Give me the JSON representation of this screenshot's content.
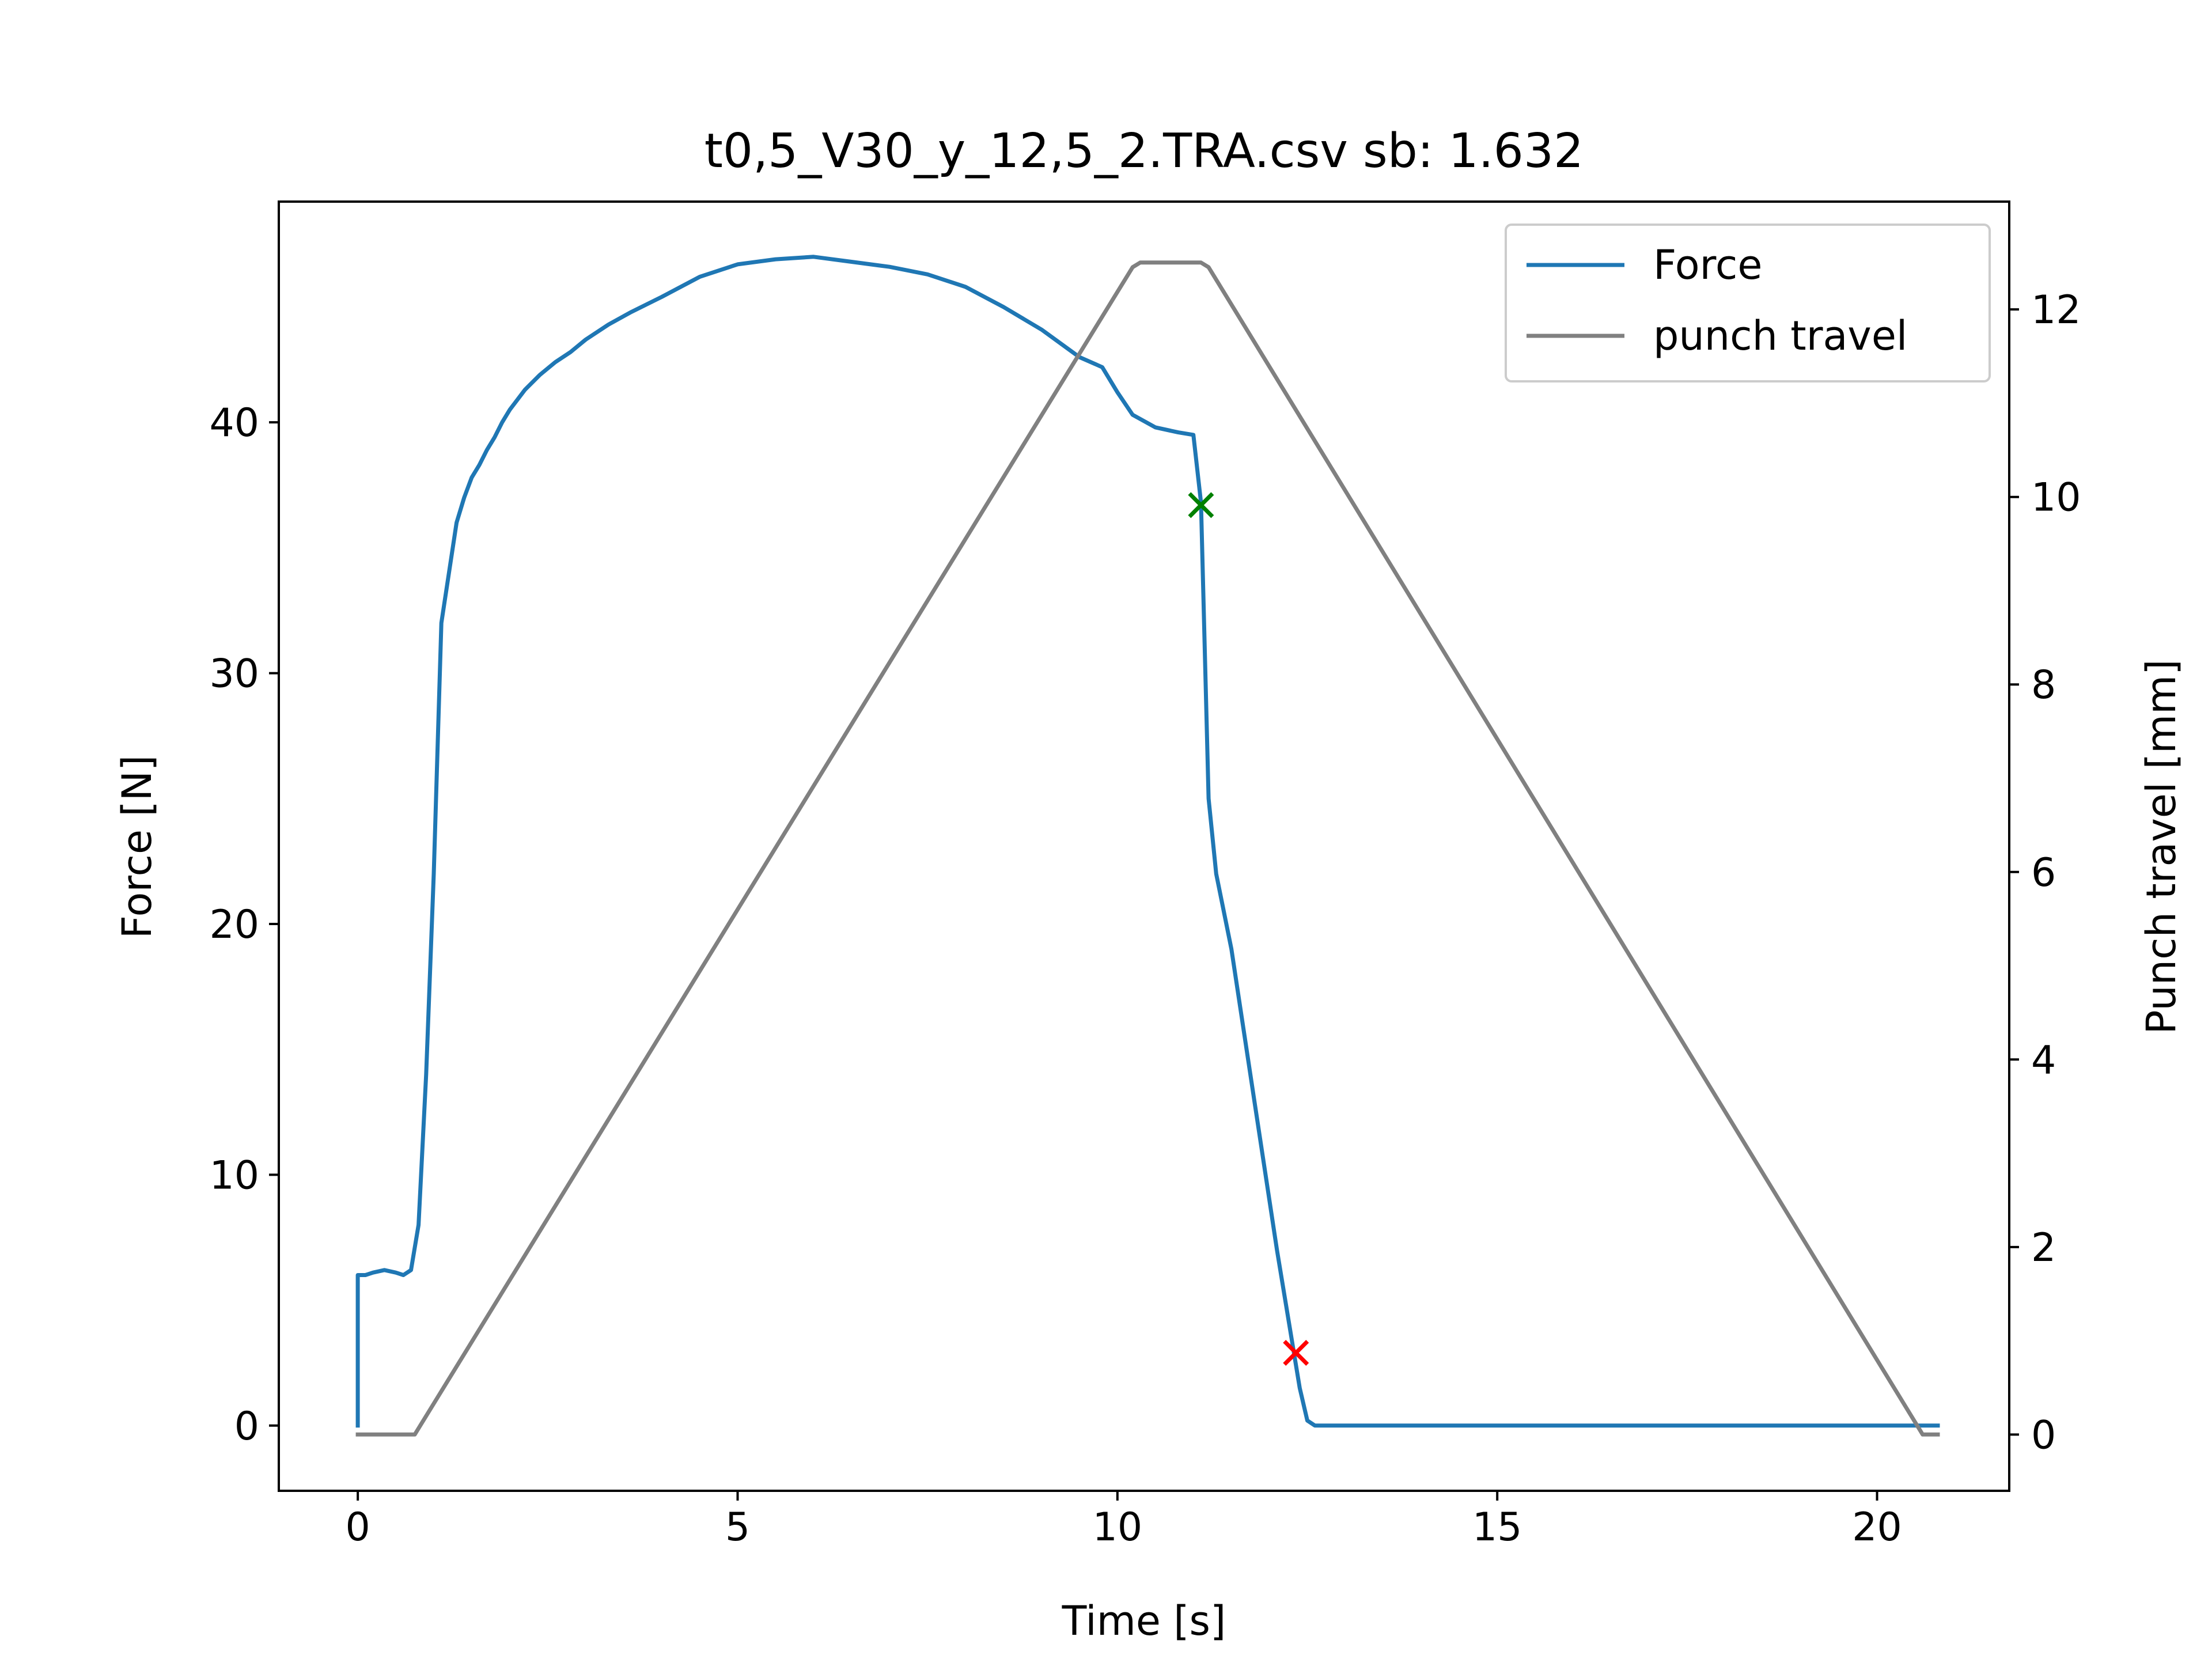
{
  "chart_data": {
    "type": "line",
    "title": "t0,5_V30_y_12,5_2.TRA.csv sb: 1.632",
    "xlabel": "Time [s]",
    "ylabel": "Force [N]",
    "y2label": "Punch travel [mm]",
    "xlim": [
      -1.04,
      21.74
    ],
    "ylim": [
      -2.6,
      48.8
    ],
    "y2lim": [
      -0.6,
      13.15
    ],
    "x_ticks": [
      0,
      5,
      10,
      15,
      20
    ],
    "y_ticks": [
      0,
      10,
      20,
      30,
      40
    ],
    "y2_ticks": [
      0,
      2,
      4,
      6,
      8,
      10,
      12
    ],
    "grid": false,
    "legend_position": "top-right",
    "series": [
      {
        "name": "Force",
        "axis": "left",
        "color": "#1f77b4",
        "x": [
          0,
          0,
          0.1,
          0.2,
          0.35,
          0.5,
          0.6,
          0.7,
          0.8,
          0.9,
          1.0,
          1.1,
          1.2,
          1.3,
          1.4,
          1.5,
          1.6,
          1.7,
          1.8,
          1.9,
          2.0,
          2.2,
          2.4,
          2.6,
          2.8,
          3.0,
          3.3,
          3.6,
          4.0,
          4.5,
          5.0,
          5.5,
          6.0,
          6.5,
          7.0,
          7.5,
          8.0,
          8.5,
          9.0,
          9.5,
          9.8,
          10.0,
          10.2,
          10.5,
          10.8,
          11.0,
          11.1,
          11.2,
          11.3,
          11.5,
          11.8,
          12.1,
          12.4,
          12.5,
          12.6,
          13,
          14,
          15,
          16,
          17,
          18,
          19,
          20,
          20.8
        ],
        "y": [
          0,
          6.0,
          6.0,
          6.1,
          6.2,
          6.1,
          6.0,
          6.2,
          8.0,
          14.0,
          22.0,
          32.0,
          34.0,
          36.0,
          37.0,
          37.8,
          38.3,
          38.9,
          39.4,
          40.0,
          40.5,
          41.3,
          41.9,
          42.4,
          42.8,
          43.3,
          43.9,
          44.4,
          45.0,
          45.8,
          46.3,
          46.5,
          46.6,
          46.4,
          46.2,
          45.9,
          45.4,
          44.6,
          43.7,
          42.6,
          42.2,
          41.2,
          40.3,
          39.8,
          39.6,
          39.5,
          36.8,
          25.0,
          22.0,
          19.0,
          13.0,
          7.0,
          1.5,
          0.2,
          0,
          0,
          0,
          0,
          0,
          0,
          0,
          0,
          0,
          0
        ]
      },
      {
        "name": "punch travel",
        "axis": "right",
        "color": "#808080",
        "x": [
          0.0,
          0.75,
          10.2,
          10.3,
          11.1,
          11.2,
          20.6,
          20.8
        ],
        "y": [
          0.0,
          0.0,
          12.45,
          12.5,
          12.5,
          12.45,
          0.0,
          0.0
        ]
      }
    ],
    "markers": [
      {
        "x": 11.1,
        "y": 36.7,
        "symbol": "x",
        "color": "#008000"
      },
      {
        "x": 12.35,
        "y": 2.9,
        "symbol": "x",
        "color": "#ff0000"
      }
    ]
  }
}
